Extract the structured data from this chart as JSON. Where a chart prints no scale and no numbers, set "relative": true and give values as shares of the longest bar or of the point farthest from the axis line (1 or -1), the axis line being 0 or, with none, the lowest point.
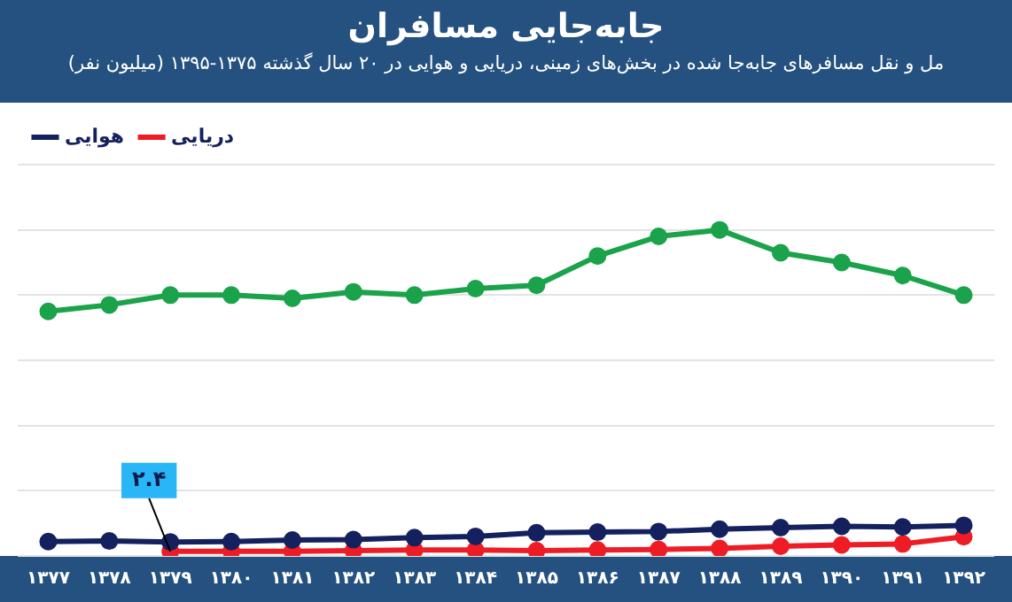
{
  "chart_data": {
    "type": "line",
    "title": "جابه‌جایی مسافران",
    "subtitle": "مل و نقل  مسافرهای جابه‌جا شده در بخش‌های زمینی، دریایی و هوایی در ۲۰ سال گذشته ۱۳۷۵-۱۳۹۵ (میلیون نفر)",
    "categories": [
      "۱۳۷۷",
      "۱۳۷۸",
      "۱۳۷۹",
      "۱۳۸۰",
      "۱۳۸۱",
      "۱۳۸۲",
      "۱۳۸۳",
      "۱۳۸۴",
      "۱۳۸۵",
      "۱۳۸۶",
      "۱۳۸۷",
      "۱۳۸۸",
      "۱۳۸۹",
      "۱۳۹۰",
      "۱۳۹۱",
      "۱۳۹۲"
    ],
    "relative": true,
    "series": [
      {
        "color": "#1aa34a",
        "values": [
          0.75,
          0.77,
          0.8,
          0.8,
          0.79,
          0.81,
          0.8,
          0.82,
          0.83,
          0.92,
          0.98,
          1,
          0.93,
          0.9,
          0.86,
          0.8
        ]
      },
      {
        "name": "هوایی",
        "color": "#14215e",
        "values": [
          0.044,
          0.046,
          0.043,
          0.044,
          0.049,
          0.05,
          0.056,
          0.06,
          0.071,
          0.073,
          0.075,
          0.082,
          0.087,
          0.091,
          0.089,
          0.094
        ]
      },
      {
        "name": "دریایی",
        "color": "#ee1c25",
        "values": [
          null,
          null,
          0.014,
          0.014,
          0.014,
          0.016,
          0.018,
          0.018,
          0.016,
          0.018,
          0.02,
          0.023,
          0.03,
          0.034,
          0.037,
          0.059
        ]
      }
    ],
    "annotations": [
      {
        "text": "۲.۴",
        "x": "۱۳۷۹",
        "y": 0.014
      }
    ],
    "grid": "y",
    "legend": "top left",
    "marker": "circle",
    "line_style": "solid"
  }
}
